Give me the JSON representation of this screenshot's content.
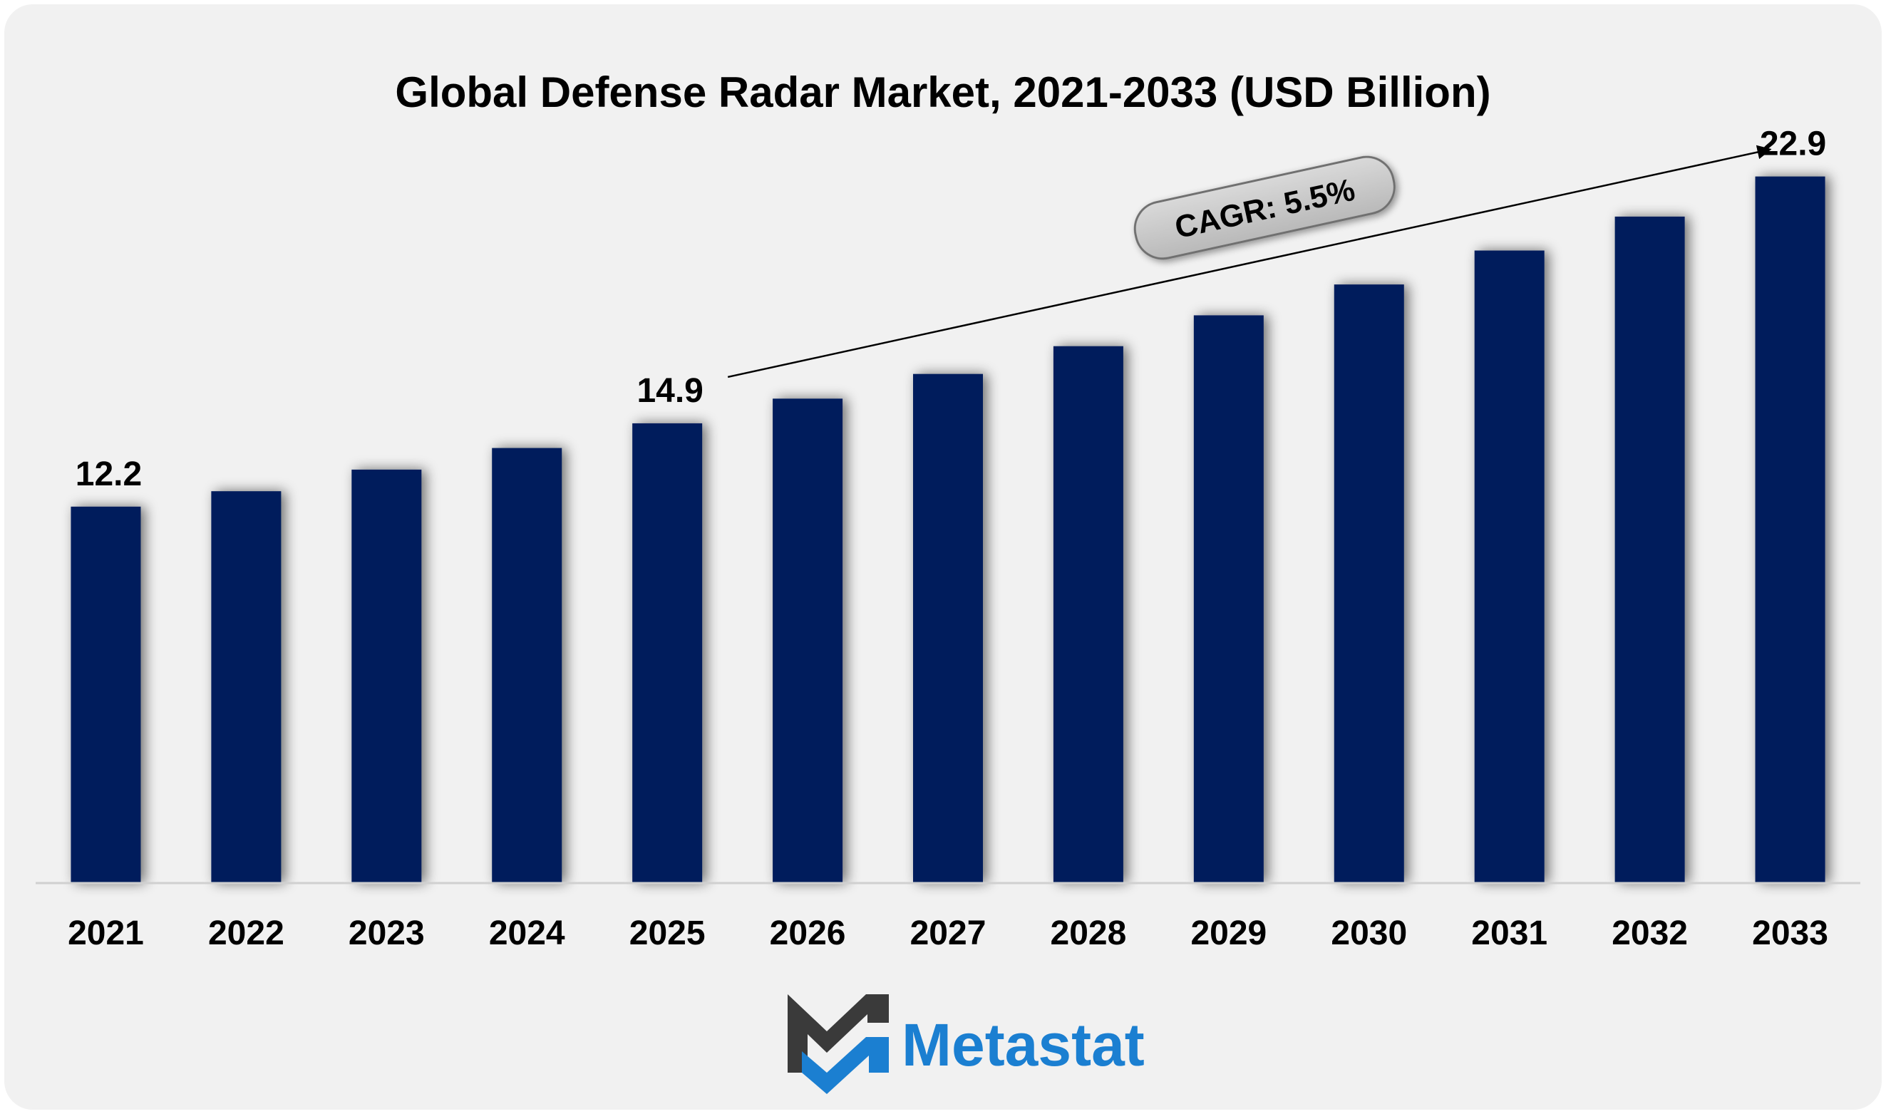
{
  "chart_data": {
    "type": "bar",
    "title": "Global Defense Radar Market, 2021-2033 (USD Billion)",
    "xlabel": "",
    "ylabel": "",
    "categories": [
      "2021",
      "2022",
      "2023",
      "2024",
      "2025",
      "2026",
      "2027",
      "2028",
      "2029",
      "2030",
      "2031",
      "2032",
      "2033"
    ],
    "values": [
      12.2,
      12.7,
      13.4,
      14.1,
      14.9,
      15.7,
      16.5,
      17.4,
      18.4,
      19.4,
      20.5,
      21.6,
      22.9
    ],
    "labeled_values": [
      {
        "category": "2021",
        "label": "12.2"
      },
      {
        "category": "2025",
        "label": "14.9"
      },
      {
        "category": "2033",
        "label": "22.9"
      }
    ],
    "ylim": [
      0,
      25
    ],
    "grid": false,
    "legend": "none",
    "annotation": {
      "text": "CAGR: 5.5%",
      "from_category": "2025",
      "to_category": "2033"
    },
    "colors": {
      "bar": "#001f5b",
      "background": "#f1f1f1"
    }
  },
  "brand": {
    "name": "Metastat",
    "logo_icon": "metastat-m-logo-icon",
    "colors": {
      "text": "#1b7fd1",
      "logo_dark": "#3a3a3a",
      "logo_blue": "#1b7fd1"
    }
  }
}
